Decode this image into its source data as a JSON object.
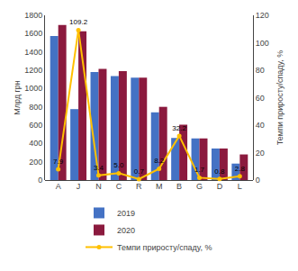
{
  "chart_data": {
    "type": "bar",
    "categories": [
      "A",
      "J",
      "N",
      "C",
      "R",
      "M",
      "B",
      "G",
      "D",
      "L"
    ],
    "series": [
      {
        "name": "2019",
        "color": "#4472C4",
        "values": [
          1575,
          775,
          1180,
          1135,
          1120,
          740,
          460,
          455,
          345,
          180
        ]
      },
      {
        "name": "2020",
        "color": "#8B1A3E",
        "values": [
          1695,
          1625,
          1215,
          1190,
          1120,
          800,
          605,
          455,
          345,
          280
        ]
      },
      {
        "name": "Темпи приросту/спаду, %",
        "type": "line",
        "axis": "y2",
        "color": "#FFC000",
        "marker": "circle",
        "values": [
          7.9,
          109.2,
          3.4,
          5.0,
          0.7,
          8.2,
          32.2,
          1.7,
          0.8,
          2.8
        ],
        "value_labels": [
          "7.9",
          "109.2",
          "3.4",
          "5.0",
          "0.7",
          "8.2",
          "32.2",
          "1.7",
          "0.8",
          "2.8"
        ],
        "data_labels": true
      }
    ],
    "ylabel": "Млрд грн",
    "y2label": "Темпи приросту/спаду, %",
    "ylim": [
      0,
      1800
    ],
    "yticks": [
      0,
      200,
      400,
      600,
      800,
      1000,
      1200,
      1400,
      1600,
      1800
    ],
    "y2lim": [
      0,
      120
    ],
    "y2ticks": [
      0,
      20,
      40,
      60,
      80,
      100,
      120
    ],
    "legend": "bottom",
    "grid": false
  }
}
